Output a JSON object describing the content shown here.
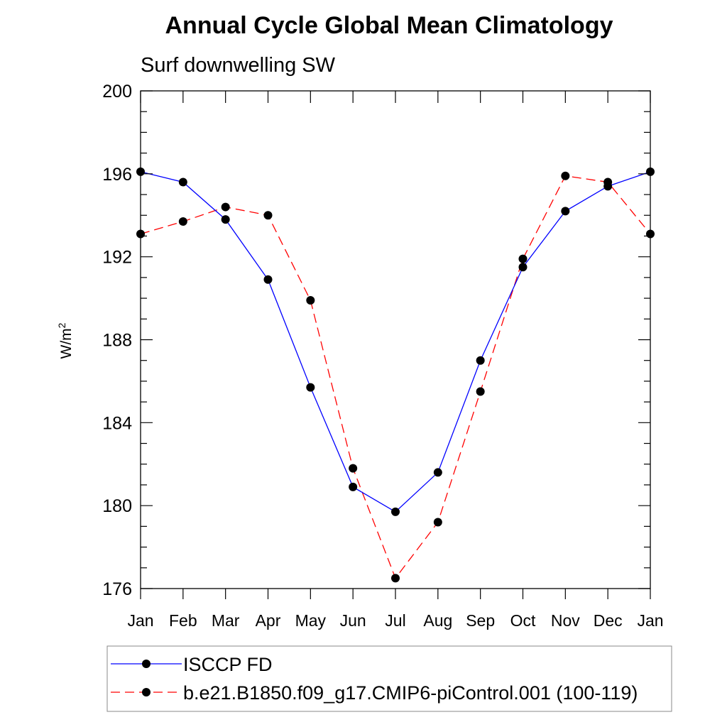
{
  "chart_data": {
    "type": "line",
    "title": "Annual Cycle Global Mean Climatology",
    "subtitle": "Surf downwelling SW",
    "ylabel": "W/m",
    "ylabel_superscript": "2",
    "xlabel": "",
    "categories": [
      "Jan",
      "Feb",
      "Mar",
      "Apr",
      "May",
      "Jun",
      "Jul",
      "Aug",
      "Sep",
      "Oct",
      "Nov",
      "Dec",
      "Jan"
    ],
    "ylim": [
      176,
      200
    ],
    "yticks": [
      176,
      180,
      184,
      188,
      192,
      196,
      200
    ],
    "y_minor_step": 1,
    "grid": false,
    "legend_position": "bottom",
    "series": [
      {
        "name": "ISCCP FD",
        "color": "#0000ff",
        "line_style": "solid",
        "marker": "filled-circle",
        "values": [
          196.1,
          195.6,
          193.8,
          190.9,
          185.7,
          180.9,
          179.7,
          181.6,
          187.0,
          191.5,
          194.2,
          195.4,
          196.1
        ]
      },
      {
        "name": "b.e21.B1850.f09_g17.CMIP6-piControl.001 (100-119)",
        "color": "#ff0000",
        "line_style": "dashed",
        "marker": "filled-circle",
        "values": [
          193.1,
          193.7,
          194.4,
          194.0,
          189.9,
          181.8,
          176.5,
          179.2,
          185.5,
          191.9,
          195.9,
          195.6,
          193.1
        ]
      }
    ]
  }
}
